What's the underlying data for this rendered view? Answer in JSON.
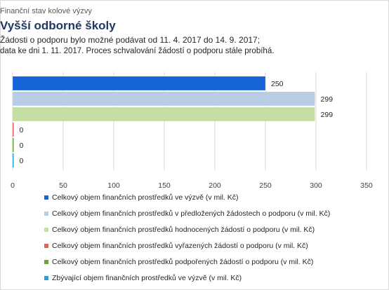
{
  "chart_data": {
    "type": "bar",
    "orientation": "horizontal",
    "supertitle": "Finanční stav kolové výzvy",
    "title": "Vyšší odborné školy",
    "subtitle_lines": [
      "Žádosti o podporu bylo možné  podávat od 11. 4. 2017 do 14. 9. 2017;",
      "data ke dni 1. 11. 2017. Proces schvalování žádostí o podporu stále probíhá."
    ],
    "xlim": [
      0,
      350
    ],
    "x_ticks": [
      0,
      50,
      100,
      150,
      200,
      250,
      300,
      350
    ],
    "grid": true,
    "legend_position": "bottom",
    "series": [
      {
        "name": "Celkový objem finančních prostředků ve výzvě (v mil. Kč)",
        "value": 250,
        "label": "250",
        "color": "#1565d8"
      },
      {
        "name": "Celkový objem finančních prostředků v předložených žádostech o podporu (v mil. Kč)",
        "value": 299,
        "label": "299",
        "color": "#b8cce4"
      },
      {
        "name": "Celkový objem finančních prostředků hodnocených žádostí o podporu (v mil. Kč)",
        "value": 299,
        "label": "299",
        "color": "#c4dea4"
      },
      {
        "name": "Celkový objem finančních prostředků vyřazených žádostí o podporu (v mil. Kč)",
        "value": 0,
        "label": "0",
        "color": "#e0605a"
      },
      {
        "name": "Celkový objem finančních prostředků podpořených žádostí o podporu (v mil. Kč)",
        "value": 0,
        "label": "0",
        "color": "#6aa536"
      },
      {
        "name": "Zbývající objem finančních prostředků ve výzvě (v mil. Kč)",
        "value": 0,
        "label": "0",
        "color": "#2ba2c8"
      }
    ]
  }
}
